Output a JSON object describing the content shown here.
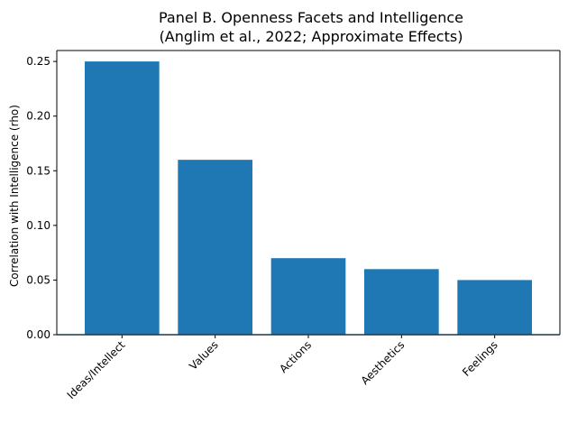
{
  "chart_data": {
    "type": "bar",
    "title_lines": [
      "Panel B. Openness Facets and Intelligence",
      "(Anglim et al., 2022; Approximate Effects)"
    ],
    "xlabel": "",
    "ylabel": "Correlation with Intelligence (rho)",
    "categories": [
      "Ideas/Intellect",
      "Values",
      "Actions",
      "Aesthetics",
      "Feelings"
    ],
    "values": [
      0.25,
      0.16,
      0.07,
      0.06,
      0.05
    ],
    "ylim": [
      0,
      0.26
    ],
    "yticks": [
      0.0,
      0.05,
      0.1,
      0.15,
      0.2,
      0.25
    ],
    "ytick_labels": [
      "0.00",
      "0.05",
      "0.10",
      "0.15",
      "0.20",
      "0.25"
    ],
    "grid": false,
    "legend": "none",
    "colors": {
      "bar": "#1f77b4",
      "axis": "#000000",
      "baseline": "#1a3a4a"
    }
  }
}
